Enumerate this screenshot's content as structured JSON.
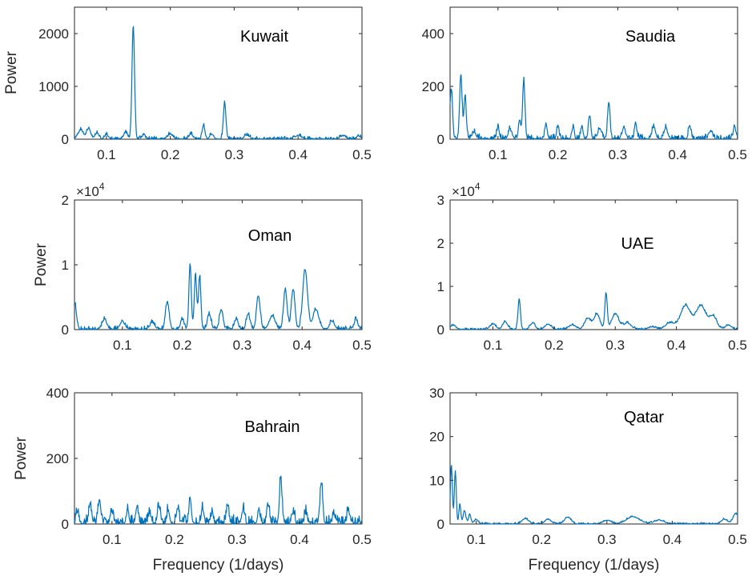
{
  "figure": {
    "xlabel": "Frequency (1/days)",
    "ylabel": "Power",
    "series_color": "#0072BD"
  },
  "chart_data": [
    {
      "type": "line",
      "title": "Kuwait",
      "xlabel": "",
      "ylabel": "Power",
      "xlim": [
        0.05,
        0.5
      ],
      "ylim": [
        0,
        2500
      ],
      "xticks": [
        0.1,
        0.2,
        0.3,
        0.4,
        0.5
      ],
      "yticks": [
        0,
        1000,
        2000
      ],
      "yticklabels": [
        "0",
        "1000",
        "2000"
      ],
      "exponent": "",
      "noise": 60,
      "noise_seed": 3,
      "peaks": [
        [
          0.06,
          170,
          0.004
        ],
        [
          0.072,
          200,
          0.003
        ],
        [
          0.085,
          110,
          0.003
        ],
        [
          0.1,
          80,
          0.003
        ],
        [
          0.13,
          120,
          0.003
        ],
        [
          0.142,
          2150,
          0.002
        ],
        [
          0.158,
          60,
          0.003
        ],
        [
          0.2,
          90,
          0.004
        ],
        [
          0.232,
          90,
          0.003
        ],
        [
          0.252,
          260,
          0.002
        ],
        [
          0.265,
          90,
          0.003
        ],
        [
          0.285,
          680,
          0.002
        ],
        [
          0.32,
          70,
          0.004
        ],
        [
          0.4,
          70,
          0.004
        ],
        [
          0.47,
          60,
          0.004
        ],
        [
          0.495,
          50,
          0.003
        ]
      ]
    },
    {
      "type": "line",
      "title": "Saudia",
      "xlabel": "",
      "ylabel": "",
      "xlim": [
        0.02,
        0.5
      ],
      "ylim": [
        0,
        500
      ],
      "xticks": [
        0.1,
        0.2,
        0.3,
        0.4,
        0.5
      ],
      "yticks": [
        0,
        200,
        400
      ],
      "yticklabels": [
        "0",
        "200",
        "400"
      ],
      "exponent": "",
      "noise": 20,
      "noise_seed": 7,
      "peaks": [
        [
          0.022,
          190,
          0.002
        ],
        [
          0.038,
          240,
          0.002
        ],
        [
          0.045,
          160,
          0.002
        ],
        [
          0.06,
          25,
          0.003
        ],
        [
          0.1,
          45,
          0.002
        ],
        [
          0.12,
          35,
          0.003
        ],
        [
          0.136,
          70,
          0.002
        ],
        [
          0.143,
          220,
          0.002
        ],
        [
          0.18,
          55,
          0.002
        ],
        [
          0.2,
          45,
          0.002
        ],
        [
          0.225,
          40,
          0.002
        ],
        [
          0.24,
          45,
          0.002
        ],
        [
          0.253,
          85,
          0.002
        ],
        [
          0.27,
          40,
          0.003
        ],
        [
          0.285,
          140,
          0.002
        ],
        [
          0.31,
          40,
          0.003
        ],
        [
          0.33,
          50,
          0.002
        ],
        [
          0.36,
          45,
          0.003
        ],
        [
          0.38,
          40,
          0.003
        ],
        [
          0.42,
          50,
          0.002
        ],
        [
          0.455,
          30,
          0.003
        ],
        [
          0.495,
          45,
          0.002
        ]
      ]
    },
    {
      "type": "line",
      "title": "Oman",
      "xlabel": "",
      "ylabel": "Power",
      "xlim": [
        0.02,
        0.5
      ],
      "ylim": [
        0,
        20000
      ],
      "xticks": [
        0.1,
        0.2,
        0.3,
        0.4,
        0.5
      ],
      "yticks": [
        0,
        10000,
        20000
      ],
      "yticklabels": [
        "0",
        "1",
        "2"
      ],
      "exponent": "4",
      "noise": 600,
      "noise_seed": 11,
      "peaks": [
        [
          0.02,
          4200,
          0.003
        ],
        [
          0.07,
          1500,
          0.004
        ],
        [
          0.1,
          1200,
          0.004
        ],
        [
          0.15,
          1000,
          0.004
        ],
        [
          0.175,
          4200,
          0.003
        ],
        [
          0.2,
          1500,
          0.003
        ],
        [
          0.213,
          9900,
          0.002
        ],
        [
          0.222,
          8300,
          0.002
        ],
        [
          0.229,
          8200,
          0.002
        ],
        [
          0.245,
          2300,
          0.003
        ],
        [
          0.265,
          3000,
          0.003
        ],
        [
          0.29,
          1500,
          0.003
        ],
        [
          0.31,
          2300,
          0.003
        ],
        [
          0.327,
          5200,
          0.003
        ],
        [
          0.35,
          2000,
          0.005
        ],
        [
          0.372,
          6000,
          0.003
        ],
        [
          0.385,
          6200,
          0.003
        ],
        [
          0.405,
          9200,
          0.004
        ],
        [
          0.423,
          3000,
          0.005
        ],
        [
          0.45,
          1200,
          0.004
        ],
        [
          0.49,
          1500,
          0.003
        ]
      ]
    },
    {
      "type": "line",
      "title": "UAE",
      "xlabel": "",
      "ylabel": "",
      "xlim": [
        0.03,
        0.5
      ],
      "ylim": [
        0,
        30000
      ],
      "xticks": [
        0.1,
        0.2,
        0.3,
        0.4,
        0.5
      ],
      "yticks": [
        0,
        10000,
        20000,
        30000
      ],
      "yticklabels": [
        "0",
        "1",
        "2",
        "3"
      ],
      "exponent": "4",
      "noise": 500,
      "noise_seed": 19,
      "peaks": [
        [
          0.035,
          1000,
          0.004
        ],
        [
          0.1,
          1200,
          0.005
        ],
        [
          0.12,
          1800,
          0.004
        ],
        [
          0.143,
          7000,
          0.002
        ],
        [
          0.165,
          1500,
          0.004
        ],
        [
          0.19,
          1200,
          0.005
        ],
        [
          0.23,
          1000,
          0.006
        ],
        [
          0.255,
          2500,
          0.005
        ],
        [
          0.27,
          3500,
          0.005
        ],
        [
          0.285,
          8200,
          0.002
        ],
        [
          0.3,
          3500,
          0.006
        ],
        [
          0.32,
          1500,
          0.006
        ],
        [
          0.36,
          600,
          0.006
        ],
        [
          0.39,
          1500,
          0.008
        ],
        [
          0.415,
          5500,
          0.008
        ],
        [
          0.44,
          5500,
          0.008
        ],
        [
          0.46,
          3000,
          0.006
        ],
        [
          0.485,
          1000,
          0.005
        ]
      ]
    },
    {
      "type": "line",
      "title": "Bahrain",
      "xlabel": "Frequency (1/days)",
      "ylabel": "Power",
      "xlim": [
        0.04,
        0.5
      ],
      "ylim": [
        0,
        400
      ],
      "xticks": [
        0.1,
        0.2,
        0.3,
        0.4,
        0.5
      ],
      "yticks": [
        0,
        200,
        400
      ],
      "yticklabels": [
        "0",
        "200",
        "400"
      ],
      "exponent": "",
      "noise": 30,
      "noise_seed": 23,
      "peaks": [
        [
          0.045,
          35,
          0.002
        ],
        [
          0.065,
          60,
          0.002
        ],
        [
          0.08,
          75,
          0.002
        ],
        [
          0.1,
          35,
          0.002
        ],
        [
          0.125,
          40,
          0.002
        ],
        [
          0.14,
          50,
          0.002
        ],
        [
          0.16,
          30,
          0.002
        ],
        [
          0.175,
          50,
          0.002
        ],
        [
          0.19,
          40,
          0.002
        ],
        [
          0.205,
          45,
          0.002
        ],
        [
          0.225,
          70,
          0.002
        ],
        [
          0.245,
          45,
          0.002
        ],
        [
          0.26,
          30,
          0.002
        ],
        [
          0.285,
          55,
          0.002
        ],
        [
          0.31,
          40,
          0.002
        ],
        [
          0.335,
          40,
          0.002
        ],
        [
          0.35,
          55,
          0.002
        ],
        [
          0.37,
          140,
          0.002
        ],
        [
          0.39,
          35,
          0.002
        ],
        [
          0.41,
          30,
          0.002
        ],
        [
          0.435,
          125,
          0.002
        ],
        [
          0.455,
          30,
          0.002
        ],
        [
          0.478,
          40,
          0.002
        ]
      ]
    },
    {
      "type": "line",
      "title": "Qatar",
      "xlabel": "Frequency (1/days)",
      "ylabel": "",
      "xlim": [
        0.06,
        0.5
      ],
      "ylim": [
        0,
        30
      ],
      "xticks": [
        0.1,
        0.2,
        0.3,
        0.4,
        0.5
      ],
      "yticks": [
        0,
        10,
        20,
        30
      ],
      "yticklabels": [
        "0",
        "10",
        "20",
        "30"
      ],
      "exponent": "",
      "noise": 0.4,
      "noise_seed": 31,
      "peaks": [
        [
          0.062,
          13.5,
          0.0015
        ],
        [
          0.068,
          12,
          0.0015
        ],
        [
          0.075,
          4.5,
          0.0015
        ],
        [
          0.082,
          3,
          0.002
        ],
        [
          0.09,
          2,
          0.002
        ],
        [
          0.1,
          1,
          0.003
        ],
        [
          0.175,
          1.2,
          0.005
        ],
        [
          0.21,
          1,
          0.005
        ],
        [
          0.24,
          1.5,
          0.005
        ],
        [
          0.3,
          0.8,
          0.006
        ],
        [
          0.34,
          1.6,
          0.01
        ],
        [
          0.38,
          0.8,
          0.008
        ],
        [
          0.48,
          1,
          0.005
        ],
        [
          0.497,
          2.3,
          0.004
        ]
      ]
    }
  ]
}
